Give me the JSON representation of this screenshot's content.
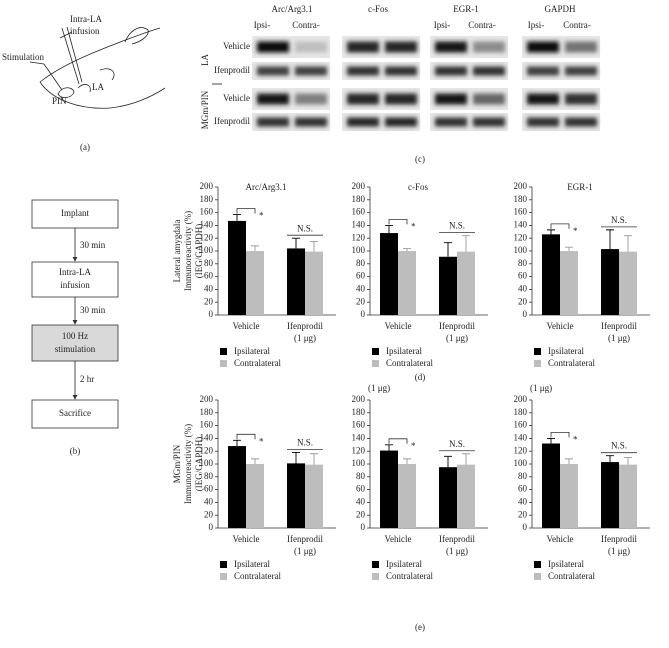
{
  "figure": {
    "panel_a": {
      "labels": [
        "Intra-LA",
        "infusion",
        "Stimulation",
        "PIN",
        "LA"
      ],
      "caption": "(a)"
    },
    "panel_b": {
      "steps": [
        [
          "Implant"
        ],
        [
          "Intra-LA",
          "infusion"
        ],
        [
          "100 Hz",
          "stimulation"
        ],
        [
          "Sacrifice"
        ]
      ],
      "intervals": [
        "30 min",
        "30 min",
        "2 hr"
      ],
      "caption": "(b)"
    },
    "panel_c": {
      "proteins": [
        "Arc/Arg3.1",
        "c-Fos",
        "EGR-1",
        "GAPDH"
      ],
      "lane_headers": [
        "Ipsi-",
        "Contra-",
        "Ipsi-",
        "Contra-",
        "Ipsi-",
        "Contra-"
      ],
      "regions": [
        "LA",
        "MGm/PIN"
      ],
      "treatments": [
        "Vehicle",
        "Ifenprodil",
        "Vehicle",
        "Ifenprodil"
      ],
      "caption": "(c)"
    },
    "panel_d": {
      "caption": "(d)"
    },
    "panel_e": {
      "caption": "(e)",
      "stray_labels": [
        "(1 μg)",
        "(1 μg)"
      ]
    }
  },
  "chart_data": [
    {
      "type": "bar",
      "title": "Arc/Arg3.1",
      "ylabel": [
        "Lateral amygdala",
        "Immunoreactivity (%)",
        "(IEG/GAPDH)"
      ],
      "categories": [
        [
          "Vehicle"
        ],
        [
          "Ifenprodil",
          "(1 μg)"
        ]
      ],
      "series": [
        {
          "name": "Ipsilateral",
          "color": "#000000",
          "values": [
            147,
            104
          ],
          "errors": [
            10,
            16
          ]
        },
        {
          "name": "Contralateral",
          "color": "#bdbdbd",
          "values": [
            100,
            99
          ],
          "errors": [
            8,
            16
          ]
        }
      ],
      "annotations": [
        "*",
        "N.S."
      ],
      "ylim": [
        0,
        200
      ],
      "yticks": [
        0,
        20,
        40,
        60,
        80,
        100,
        120,
        140,
        160,
        180,
        200
      ]
    },
    {
      "type": "bar",
      "title": "c-Fos",
      "categories": [
        [
          "Vehicle"
        ],
        [
          "Ifenprodil",
          "(1 μg)"
        ]
      ],
      "series": [
        {
          "name": "Ipsilateral",
          "color": "#000000",
          "values": [
            128,
            91
          ],
          "errors": [
            12,
            22
          ]
        },
        {
          "name": "Contralateral",
          "color": "#bdbdbd",
          "values": [
            100,
            99
          ],
          "errors": [
            4,
            25
          ]
        }
      ],
      "annotations": [
        "*",
        "N.S."
      ],
      "ylim": [
        0,
        200
      ],
      "yticks": [
        0,
        20,
        40,
        60,
        80,
        100,
        120,
        140,
        160,
        180,
        200
      ]
    },
    {
      "type": "bar",
      "title": "EGR-1",
      "categories": [
        [
          "Vehicle"
        ],
        [
          "Ifenprodil",
          "(1 μg)"
        ]
      ],
      "series": [
        {
          "name": "Ipsilateral",
          "color": "#000000",
          "values": [
            126,
            103
          ],
          "errors": [
            7,
            30
          ]
        },
        {
          "name": "Contralateral",
          "color": "#bdbdbd",
          "values": [
            100,
            99
          ],
          "errors": [
            6,
            25
          ]
        }
      ],
      "annotations": [
        "*",
        "N.S."
      ],
      "ylim": [
        0,
        200
      ],
      "yticks": [
        0,
        20,
        40,
        60,
        80,
        100,
        120,
        140,
        160,
        180,
        200
      ]
    },
    {
      "type": "bar",
      "ylabel": [
        "MGm/PIN",
        "Immunoreactivity (%)",
        "(IEG/GAPDH)"
      ],
      "categories": [
        [
          "Vehicle"
        ],
        [
          "Ifenprodil",
          "(1 μg)"
        ]
      ],
      "series": [
        {
          "name": "Ipsilateral",
          "color": "#000000",
          "values": [
            128,
            101
          ],
          "errors": [
            9,
            17
          ]
        },
        {
          "name": "Contralateral",
          "color": "#bdbdbd",
          "values": [
            100,
            99
          ],
          "errors": [
            8,
            17
          ]
        }
      ],
      "annotations": [
        "*",
        "N.S."
      ],
      "ylim": [
        0,
        200
      ],
      "yticks": [
        0,
        20,
        40,
        60,
        80,
        100,
        120,
        140,
        160,
        180,
        200
      ]
    },
    {
      "type": "bar",
      "categories": [
        [
          "Vehicle"
        ],
        [
          "Ifenprodil",
          "(1 μg)"
        ]
      ],
      "series": [
        {
          "name": "Ipsilateral",
          "color": "#000000",
          "values": [
            121,
            95
          ],
          "errors": [
            9,
            17
          ]
        },
        {
          "name": "Contralateral",
          "color": "#bdbdbd",
          "values": [
            100,
            99
          ],
          "errors": [
            8,
            17
          ]
        }
      ],
      "annotations": [
        "*",
        "N.S."
      ],
      "ylim": [
        0,
        200
      ],
      "yticks": [
        0,
        20,
        40,
        60,
        80,
        100,
        120,
        140,
        160,
        180,
        200
      ]
    },
    {
      "type": "bar",
      "categories": [
        [
          "Vehicle"
        ],
        [
          "Ifenprodil",
          "(1 μg)"
        ]
      ],
      "series": [
        {
          "name": "Ipsilateral",
          "color": "#000000",
          "values": [
            132,
            103
          ],
          "errors": [
            8,
            10
          ]
        },
        {
          "name": "Contralateral",
          "color": "#bdbdbd",
          "values": [
            100,
            99
          ],
          "errors": [
            8,
            11
          ]
        }
      ],
      "annotations": [
        "*",
        "N.S."
      ],
      "ylim": [
        0,
        200
      ],
      "yticks": [
        0,
        20,
        40,
        60,
        80,
        100,
        120,
        140,
        160,
        180,
        200
      ]
    }
  ]
}
